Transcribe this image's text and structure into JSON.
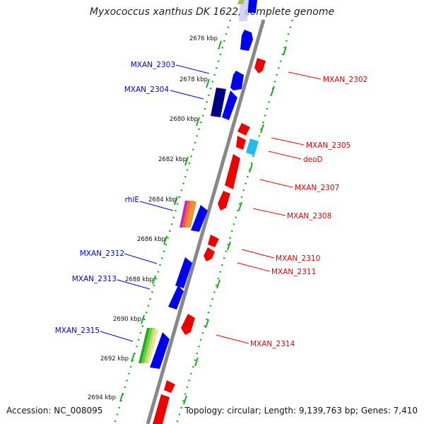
{
  "header": {
    "title": "Myxococcus xanthus DK 1622, complete genome"
  },
  "footer": {
    "accession": "Accession: NC_008095",
    "stats": "Topology: circular; Length: 9,139,763 bp; Genes: 7,410"
  },
  "ticks": [
    "2676 kbp",
    "2678 kbp",
    "2680 kbp",
    "2682 kbp",
    "2684 kbp",
    "2686 kbp",
    "2688 kbp",
    "2690 kbp",
    "2692 kbp",
    "2694 kbp"
  ],
  "genes_left": [
    "MXAN_2303",
    "MXAN_2304",
    "rhlE",
    "MXAN_2312",
    "MXAN_2313",
    "MXAN_2315"
  ],
  "genes_right": [
    "MXAN_2302",
    "MXAN_2305",
    "deoD",
    "MXAN_2307",
    "MXAN_2308",
    "MXAN_2310",
    "MXAN_2311",
    "MXAN_2314"
  ],
  "colors": {
    "backbone": "#888888",
    "dots": "#22aa22",
    "forward_gene": "#0000ee",
    "forward_gene_dark": "#000080",
    "reverse_gene": "#ee0000",
    "deoD_gene": "#22bbee",
    "label_blue": "#0000cc",
    "label_red": "#dd0000"
  }
}
